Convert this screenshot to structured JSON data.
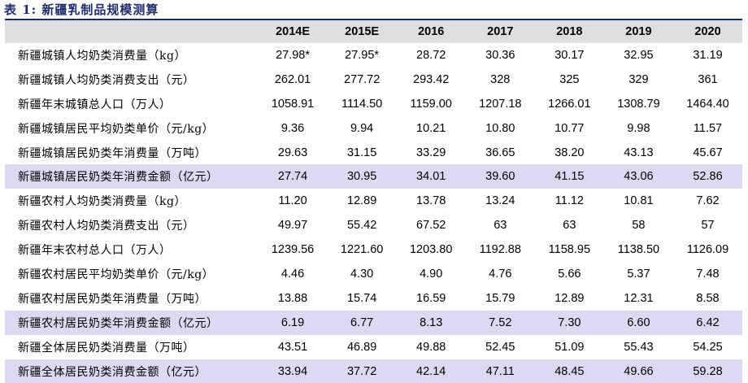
{
  "title": "表 1: 新疆乳制品规模测算",
  "columns": [
    "2014E",
    "2015E",
    "2016",
    "2017",
    "2018",
    "2019",
    "2020"
  ],
  "highlight_color": "#dcdaf2",
  "rows": [
    {
      "label": "新疆城镇人均奶类消费量（kg）",
      "values": [
        "27.98*",
        "27.95*",
        "28.72",
        "30.36",
        "30.17",
        "32.95",
        "31.19"
      ],
      "highlight": false
    },
    {
      "label": "新疆城镇人均奶类消费支出（元）",
      "values": [
        "262.01",
        "277.72",
        "293.42",
        "328",
        "325",
        "329",
        "361"
      ],
      "highlight": false
    },
    {
      "label": "新疆年末城镇总人口（万人）",
      "values": [
        "1058.91",
        "1114.50",
        "1159.00",
        "1207.18",
        "1266.01",
        "1308.79",
        "1464.40"
      ],
      "highlight": false
    },
    {
      "label": "新疆城镇居民平均奶类单价（元/kg）",
      "values": [
        "9.36",
        "9.94",
        "10.21",
        "10.80",
        "10.77",
        "9.98",
        "11.57"
      ],
      "highlight": false
    },
    {
      "label": "新疆城镇居民奶类年消费量（万吨）",
      "values": [
        "29.63",
        "31.15",
        "33.29",
        "36.65",
        "38.20",
        "43.13",
        "45.67"
      ],
      "highlight": false
    },
    {
      "label": "新疆城镇居民奶类年消费金额（亿元）",
      "values": [
        "27.74",
        "30.95",
        "34.01",
        "39.60",
        "41.15",
        "43.06",
        "52.86"
      ],
      "highlight": true
    },
    {
      "label": "新疆农村人均奶类消费量（kg）",
      "values": [
        "11.20",
        "12.89",
        "13.78",
        "13.24",
        "11.12",
        "10.81",
        "7.62"
      ],
      "highlight": false
    },
    {
      "label": "新疆农村人均奶类消费支出（元）",
      "values": [
        "49.97",
        "55.42",
        "67.52",
        "63",
        "63",
        "58",
        "57"
      ],
      "highlight": false
    },
    {
      "label": "新疆年末农村总人口（万人）",
      "values": [
        "1239.56",
        "1221.60",
        "1203.80",
        "1192.88",
        "1158.95",
        "1138.50",
        "1126.09"
      ],
      "highlight": false
    },
    {
      "label": "新疆农村居民平均奶类单价（元/kg）",
      "values": [
        "4.46",
        "4.30",
        "4.90",
        "4.76",
        "5.66",
        "5.37",
        "7.48"
      ],
      "highlight": false
    },
    {
      "label": "新疆农村居民奶类年消费量（万吨）",
      "values": [
        "13.88",
        "15.74",
        "16.59",
        "15.79",
        "12.89",
        "12.31",
        "8.58"
      ],
      "highlight": false
    },
    {
      "label": "新疆农村居民奶类年消费金额（亿元）",
      "values": [
        "6.19",
        "6.77",
        "8.13",
        "7.52",
        "7.30",
        "6.60",
        "6.42"
      ],
      "highlight": true
    },
    {
      "label": "新疆全体居民奶类消费量（万吨）",
      "values": [
        "43.51",
        "46.89",
        "49.88",
        "52.45",
        "51.09",
        "55.43",
        "54.25"
      ],
      "highlight": false
    },
    {
      "label": "新疆全体居民奶类消费金额（亿元）",
      "values": [
        "33.94",
        "37.72",
        "42.14",
        "47.11",
        "48.45",
        "49.66",
        "59.28"
      ],
      "highlight": true
    }
  ]
}
